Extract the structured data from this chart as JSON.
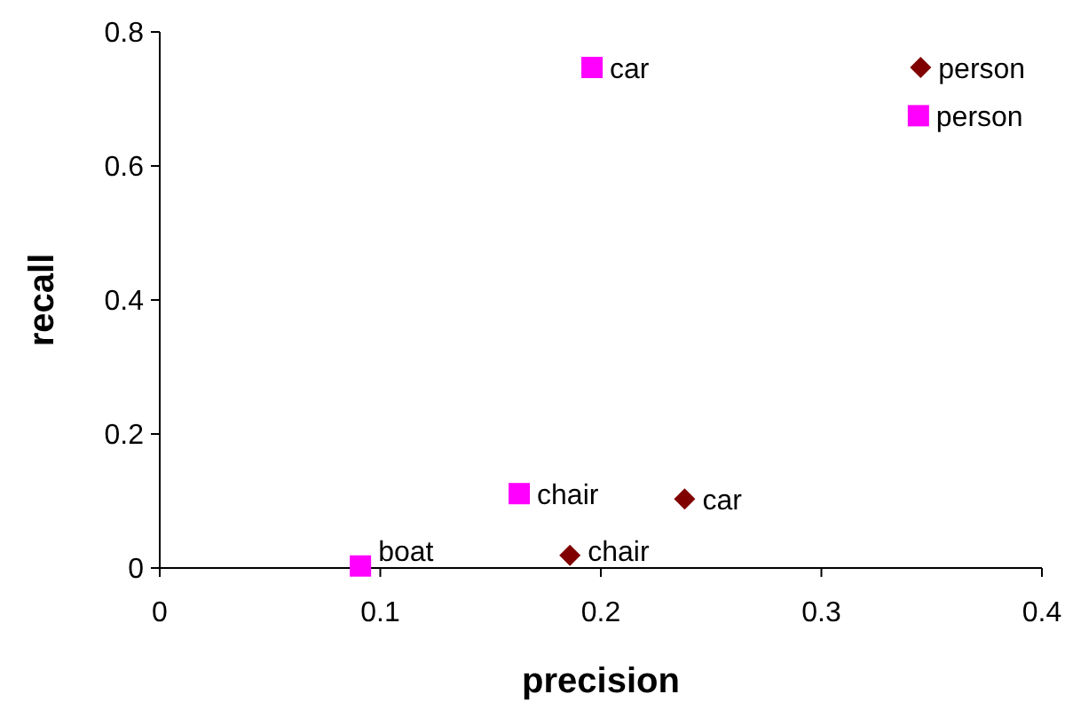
{
  "chart_data": {
    "type": "scatter",
    "xlabel": "precision",
    "ylabel": "recall",
    "xlim": [
      0,
      0.4
    ],
    "ylim": [
      0,
      0.8
    ],
    "xticks": [
      0,
      0.1,
      0.2,
      0.3,
      0.4
    ],
    "yticks": [
      0,
      0.2,
      0.4,
      0.6,
      0.8
    ],
    "grid": false,
    "series": [
      {
        "color": "#800000",
        "marker": "diamond",
        "x": [
          0.186,
          0.238,
          0.345
        ],
        "values": [
          0.019,
          0.103,
          0.747
        ]
      },
      {
        "color": "#ff00ff",
        "marker": "square",
        "x": [
          0.091,
          0.163,
          0.196,
          0.344
        ],
        "values": [
          0.003,
          0.111,
          0.747,
          0.675
        ]
      }
    ],
    "annotations": [
      {
        "text": "chair",
        "x": 0.186,
        "y": 0.019
      },
      {
        "text": "car",
        "x": 0.238,
        "y": 0.103
      },
      {
        "text": "person",
        "x": 0.345,
        "y": 0.747
      },
      {
        "text": "boat",
        "x": 0.091,
        "y": 0.003
      },
      {
        "text": "chair",
        "x": 0.163,
        "y": 0.111
      },
      {
        "text": "car",
        "x": 0.196,
        "y": 0.747
      },
      {
        "text": "person",
        "x": 0.344,
        "y": 0.675
      }
    ]
  }
}
